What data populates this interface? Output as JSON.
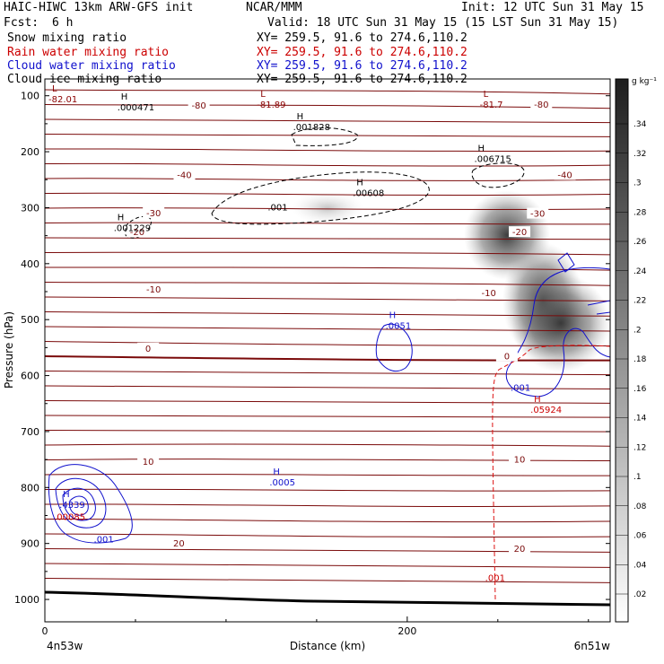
{
  "header": {
    "title_left": "HAIC-HIWC 13km ARW-GFS init",
    "center": "NCAR/MMM",
    "init": "Init: 12 UTC Sun 31 May 15",
    "fcst_label": "Fcst:",
    "fcst_value": "6 h",
    "valid": "Valid: 18 UTC Sun 31 May 15 (15 LST Sun 31 May 15)",
    "fields": [
      {
        "name": "Snow mixing ratio",
        "xy": "XY= 259.5, 91.6 to 274.6,110.2",
        "color": "#000000"
      },
      {
        "name": "Rain water mixing ratio",
        "xy": "XY= 259.5, 91.6 to 274.6,110.2",
        "color": "#cc0000"
      },
      {
        "name": "Cloud water mixing ratio",
        "xy": "XY= 259.5, 91.6 to 274.6,110.2",
        "color": "#1010cc"
      },
      {
        "name": "Cloud ice mixing ratio",
        "xy": "XY= 259.5, 91.6 to 274.6,110.2",
        "color": "#000000"
      }
    ]
  },
  "chart_data": {
    "type": "line",
    "xlabel": "Distance (km)",
    "ylabel": "Pressure (hPa)",
    "x_ticks": [
      0,
      200
    ],
    "y_ticks": [
      100,
      200,
      300,
      400,
      500,
      600,
      700,
      800,
      900,
      1000
    ],
    "ylim": [
      1040,
      70
    ],
    "xlim": [
      0,
      312
    ],
    "left_endpoint": "4n53w",
    "right_endpoint": "6n51w",
    "colorbar": {
      "unit": "g kg⁻¹",
      "ticks": [
        ".34",
        ".32",
        ".3",
        ".28",
        ".26",
        ".24",
        ".22",
        ".2",
        ".18",
        ".16",
        ".14",
        ".12",
        ".1",
        ".08",
        ".06",
        ".04",
        ".02"
      ]
    },
    "temperature_labels": [
      {
        "text": "-80",
        "x": 85,
        "p": 120
      },
      {
        "text": "-80",
        "x": 274,
        "p": 118
      },
      {
        "text": "-40",
        "x": 77,
        "p": 244
      },
      {
        "text": "-40",
        "x": 287,
        "p": 244
      },
      {
        "text": "-30",
        "x": 60,
        "p": 312
      },
      {
        "text": "-30",
        "x": 272,
        "p": 313
      },
      {
        "text": "-20",
        "x": 51,
        "p": 346
      },
      {
        "text": "-20",
        "x": 262,
        "p": 346
      },
      {
        "text": "-10",
        "x": 60,
        "p": 448
      },
      {
        "text": "-10",
        "x": 245,
        "p": 455
      },
      {
        "text": "0",
        "x": 57,
        "p": 554
      },
      {
        "text": "0",
        "x": 255,
        "p": 568
      },
      {
        "text": "10",
        "x": 57,
        "p": 756
      },
      {
        "text": "10",
        "x": 262,
        "p": 752
      },
      {
        "text": "20",
        "x": 74,
        "p": 902
      },
      {
        "text": "20",
        "x": 262,
        "p": 912
      }
    ],
    "extrema": [
      {
        "kind": "L",
        "value": "-82.01",
        "x": 2,
        "p": 105,
        "color": "#8b0000"
      },
      {
        "kind": "L",
        "value": "-81.89",
        "x": 117,
        "p": 115,
        "color": "#8b0000"
      },
      {
        "kind": "L",
        "value": "-81.7",
        "x": 240,
        "p": 115,
        "color": "#8b0000"
      },
      {
        "kind": "H",
        "value": ".000471",
        "x": 40,
        "p": 120,
        "color": "#000000"
      },
      {
        "kind": "H",
        "value": ".001828",
        "x": 137,
        "p": 155,
        "color": "#000000"
      },
      {
        "kind": "H",
        "value": ".006715",
        "x": 237,
        "p": 212,
        "color": "#000000"
      },
      {
        "kind": "H",
        "value": ".00608",
        "x": 170,
        "p": 273,
        "color": "#000000"
      },
      {
        "kind": "H",
        "value": ".001229",
        "x": 38,
        "p": 335,
        "color": "#000000"
      },
      {
        "kind": "H",
        "value": ".0051",
        "x": 188,
        "p": 510,
        "color": "#1010cc"
      },
      {
        "kind": "H",
        "value": ".0005",
        "x": 124,
        "p": 790,
        "color": "#1010cc"
      },
      {
        "kind": "H",
        "value": ".4339",
        "x": 8,
        "p": 830,
        "color": "#1010cc"
      },
      {
        "kind": "H",
        "value": ".05924",
        "x": 268,
        "p": 660,
        "color": "#cc0000"
      }
    ],
    "contour_labels": [
      {
        "text": ".001",
        "x": 123,
        "p": 305,
        "color": "#000000"
      },
      {
        "text": ".001",
        "x": 257,
        "p": 627,
        "color": "#1010cc"
      },
      {
        "text": ".001",
        "x": 27,
        "p": 898,
        "color": "#1010cc"
      },
      {
        "text": ".001",
        "x": 243,
        "p": 967,
        "color": "#cc0000"
      },
      {
        "text": ".00085",
        "x": 5,
        "p": 858,
        "color": "#cc0000"
      }
    ]
  }
}
